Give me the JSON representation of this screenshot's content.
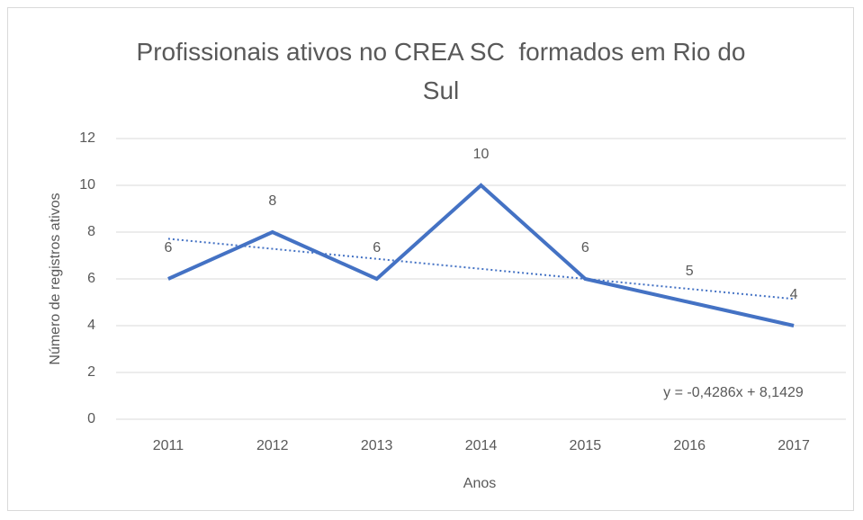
{
  "chart_data": {
    "type": "line",
    "title": "Profissionais ativos no CREA SC  formados em Rio do Sul",
    "x_label": "Anos",
    "y_label": "Número  de registros ativos",
    "categories": [
      "2011",
      "2012",
      "2013",
      "2014",
      "2015",
      "2016",
      "2017"
    ],
    "series": [
      {
        "name": "Profissionais ativos",
        "color": "#4472c4",
        "values": [
          6,
          8,
          6,
          10,
          6,
          5,
          4
        ]
      }
    ],
    "trendline": {
      "label": "y = -0,4286x + 8,1429",
      "slope": -0.4286,
      "intercept": 8.1429,
      "color": "#4472c4"
    },
    "ylim": [
      0,
      12
    ],
    "yticks": [
      0,
      2,
      4,
      6,
      8,
      10,
      12
    ],
    "grid": true
  }
}
